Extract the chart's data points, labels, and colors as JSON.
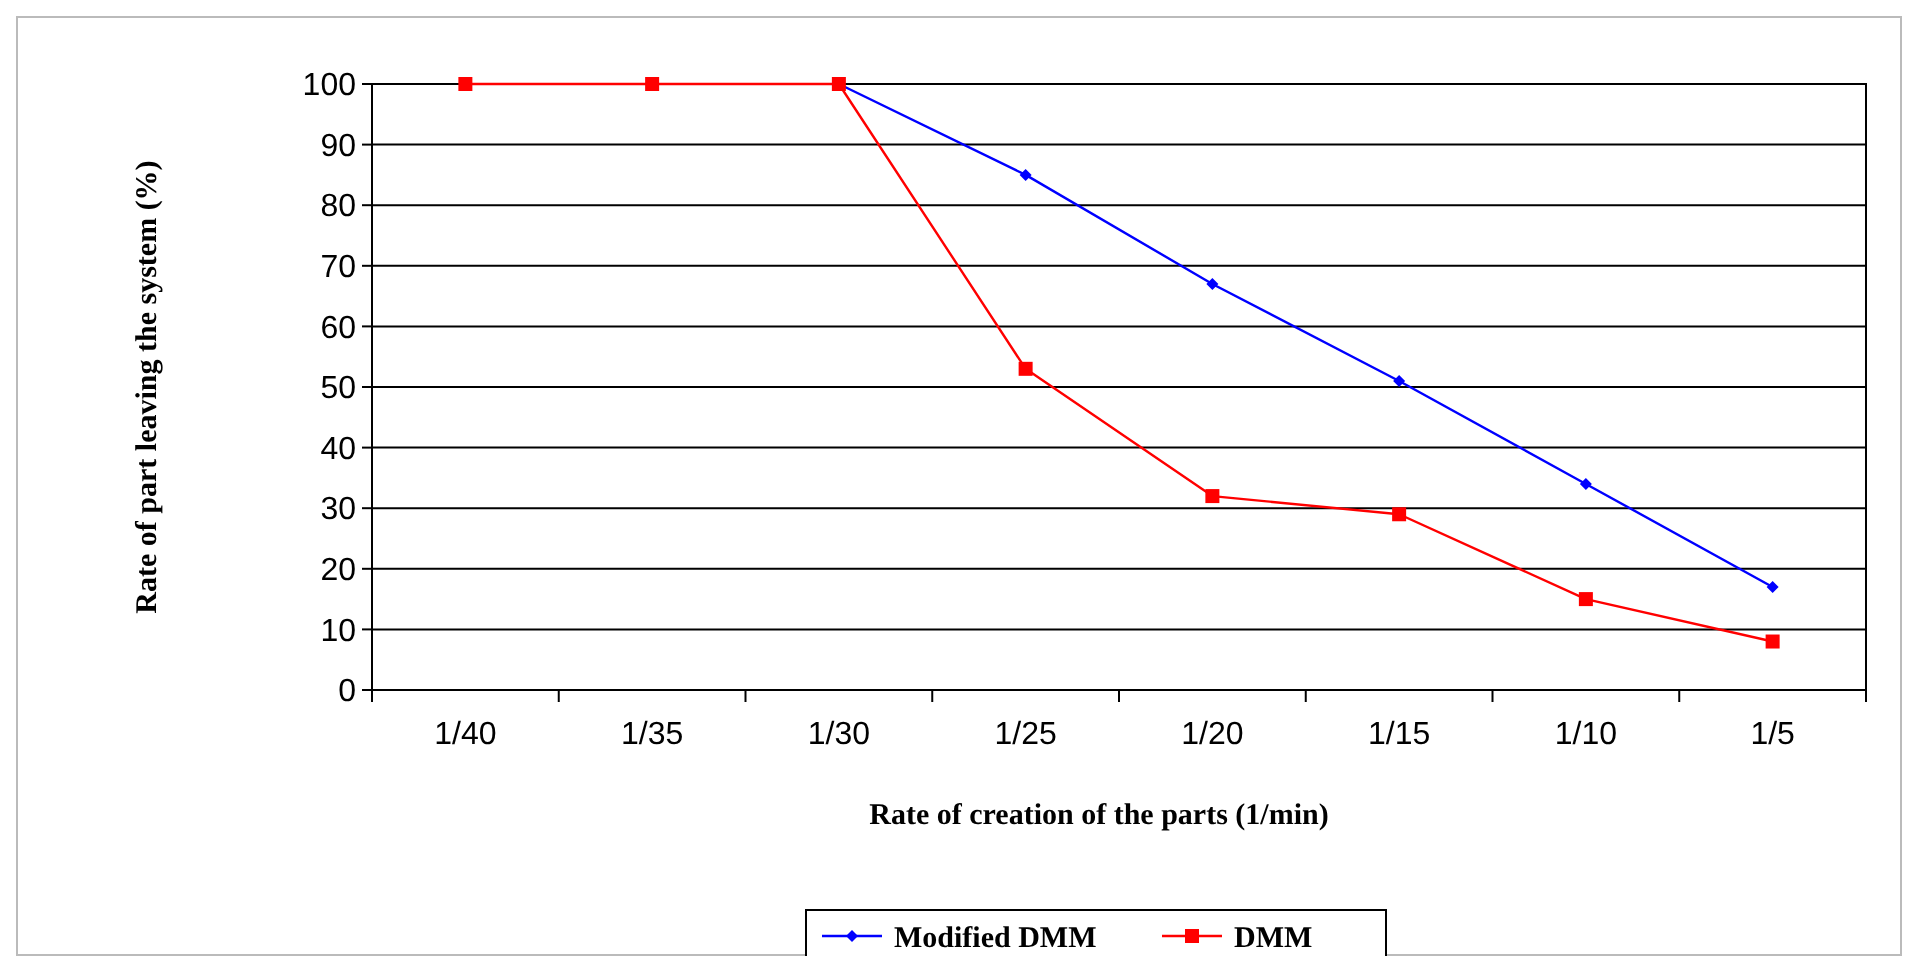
{
  "chart_data": {
    "type": "line",
    "xlabel": "Rate of creation of the parts (1/min)",
    "ylabel": "Rate of part leaving the system (%)",
    "categories": [
      "1/40",
      "1/35",
      "1/30",
      "1/25",
      "1/20",
      "1/15",
      "1/10",
      "1/5"
    ],
    "series": [
      {
        "name": "Modified DMM",
        "color": "#0000ff",
        "marker": "diamond",
        "values": [
          null,
          null,
          100,
          85,
          67,
          51,
          34,
          17
        ]
      },
      {
        "name": "DMM",
        "color": "#ff0000",
        "marker": "square",
        "values": [
          100,
          100,
          100,
          53,
          32,
          29,
          15,
          8
        ]
      }
    ],
    "ylim": [
      0,
      100
    ],
    "yticks": [
      0,
      10,
      20,
      30,
      40,
      50,
      60,
      70,
      80,
      90,
      100
    ],
    "grid": "y",
    "legend": "bottom"
  }
}
